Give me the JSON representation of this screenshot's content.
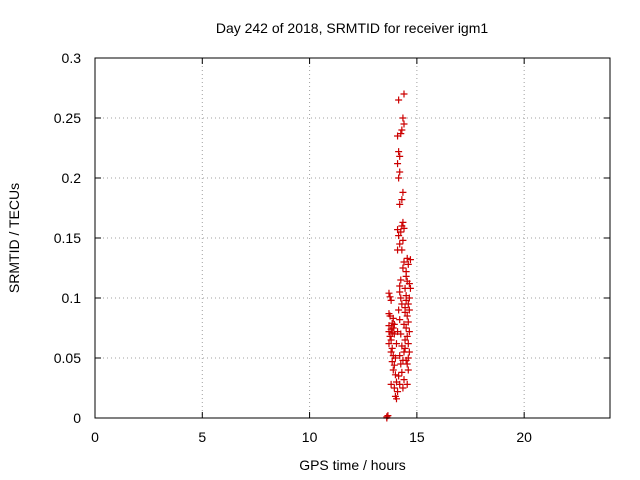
{
  "chart_data": {
    "type": "scatter",
    "title": "Day 242 of 2018, SRMTID for receiver igm1",
    "xlabel": "GPS time / hours",
    "ylabel": "SRMTID / TECUs",
    "xlim": [
      0,
      24
    ],
    "ylim": [
      0,
      0.3
    ],
    "grid": true,
    "x_ticks": [
      0,
      5,
      10,
      15,
      20
    ],
    "x_tick_labels": [
      "0",
      "5",
      "10",
      "15",
      "20"
    ],
    "y_ticks": [
      0,
      0.05,
      0.1,
      0.15,
      0.2,
      0.25,
      0.3
    ],
    "y_tick_labels": [
      "0",
      "0.05",
      "0.1",
      "0.15",
      "0.2",
      "0.25",
      "0.3"
    ],
    "marker": "plus",
    "color": "#cc0000",
    "series": [
      {
        "name": "SRMTID",
        "points": [
          [
            13.6,
            0.0
          ],
          [
            13.6,
            0.001
          ],
          [
            13.65,
            0.002
          ],
          [
            13.7,
            0.104
          ],
          [
            13.75,
            0.101
          ],
          [
            13.8,
            0.098
          ],
          [
            13.7,
            0.087
          ],
          [
            13.75,
            0.085
          ],
          [
            13.7,
            0.077
          ],
          [
            13.8,
            0.074
          ],
          [
            13.85,
            0.079
          ],
          [
            13.7,
            0.072
          ],
          [
            13.75,
            0.068
          ],
          [
            13.8,
            0.065
          ],
          [
            13.7,
            0.062
          ],
          [
            13.85,
            0.071
          ],
          [
            13.9,
            0.083
          ],
          [
            13.95,
            0.078
          ],
          [
            13.9,
            0.075
          ],
          [
            13.95,
            0.07
          ],
          [
            13.85,
            0.058
          ],
          [
            13.8,
            0.055
          ],
          [
            13.9,
            0.052
          ],
          [
            13.85,
            0.047
          ],
          [
            13.95,
            0.044
          ],
          [
            13.9,
            0.04
          ],
          [
            14.0,
            0.036
          ],
          [
            13.8,
            0.028
          ],
          [
            13.95,
            0.025
          ],
          [
            14.05,
            0.03
          ],
          [
            14.0,
            0.018
          ],
          [
            14.05,
            0.016
          ],
          [
            14.1,
            0.022
          ],
          [
            14.0,
            0.05
          ],
          [
            14.05,
            0.062
          ],
          [
            14.1,
            0.072
          ],
          [
            14.15,
            0.09
          ],
          [
            14.2,
            0.105
          ],
          [
            14.25,
            0.115
          ],
          [
            14.2,
            0.11
          ],
          [
            14.25,
            0.1
          ],
          [
            14.3,
            0.095
          ],
          [
            14.2,
            0.082
          ],
          [
            14.25,
            0.07
          ],
          [
            14.3,
            0.06
          ],
          [
            14.2,
            0.052
          ],
          [
            14.25,
            0.045
          ],
          [
            14.3,
            0.038
          ],
          [
            14.15,
            0.035
          ],
          [
            14.2,
            0.028
          ],
          [
            14.35,
            0.025
          ],
          [
            14.4,
            0.032
          ],
          [
            14.35,
            0.048
          ],
          [
            14.4,
            0.055
          ],
          [
            14.45,
            0.065
          ],
          [
            14.4,
            0.078
          ],
          [
            14.45,
            0.088
          ],
          [
            14.5,
            0.098
          ],
          [
            14.45,
            0.108
          ],
          [
            14.5,
            0.118
          ],
          [
            14.35,
            0.125
          ],
          [
            14.4,
            0.13
          ],
          [
            14.55,
            0.133
          ],
          [
            14.5,
            0.122
          ],
          [
            14.3,
            0.14
          ],
          [
            14.35,
            0.148
          ],
          [
            14.25,
            0.155
          ],
          [
            14.3,
            0.16
          ],
          [
            14.35,
            0.163
          ],
          [
            14.4,
            0.158
          ],
          [
            14.15,
            0.152
          ],
          [
            14.1,
            0.157
          ],
          [
            14.2,
            0.145
          ],
          [
            14.1,
            0.14
          ],
          [
            14.2,
            0.178
          ],
          [
            14.3,
            0.182
          ],
          [
            14.35,
            0.188
          ],
          [
            14.15,
            0.2
          ],
          [
            14.2,
            0.205
          ],
          [
            14.1,
            0.212
          ],
          [
            14.2,
            0.218
          ],
          [
            14.15,
            0.222
          ],
          [
            14.25,
            0.237
          ],
          [
            14.1,
            0.235
          ],
          [
            14.3,
            0.24
          ],
          [
            14.4,
            0.245
          ],
          [
            14.35,
            0.25
          ],
          [
            14.15,
            0.265
          ],
          [
            14.4,
            0.27
          ],
          [
            14.6,
            0.05
          ],
          [
            14.55,
            0.045
          ],
          [
            14.65,
            0.055
          ],
          [
            14.6,
            0.062
          ],
          [
            14.55,
            0.068
          ],
          [
            14.65,
            0.072
          ],
          [
            14.6,
            0.08
          ],
          [
            14.55,
            0.085
          ],
          [
            14.65,
            0.09
          ],
          [
            14.6,
            0.095
          ],
          [
            14.65,
            0.1
          ],
          [
            14.7,
            0.108
          ],
          [
            14.65,
            0.112
          ],
          [
            14.55,
            0.028
          ],
          [
            14.6,
            0.04
          ],
          [
            14.5,
            0.048
          ],
          [
            14.45,
            0.058
          ],
          [
            14.5,
            0.075
          ],
          [
            14.7,
            0.132
          ],
          [
            14.6,
            0.128
          ],
          [
            14.5,
            0.102
          ],
          [
            14.45,
            0.092
          ],
          [
            14.55,
            0.114
          ]
        ]
      }
    ]
  }
}
